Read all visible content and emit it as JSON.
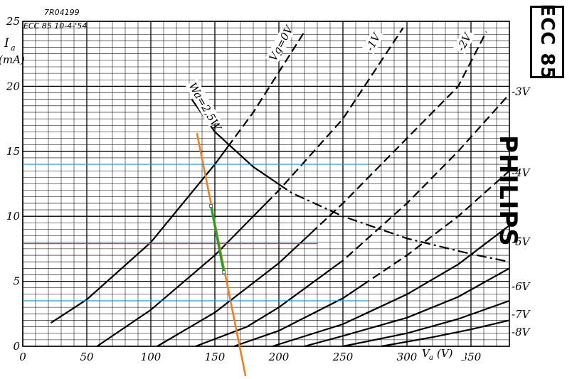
{
  "header": {
    "code": "7R04199",
    "tube_date": "ECC 85 10-4-'54"
  },
  "brand": {
    "tube": "ECC 85",
    "maker": "PHILIPS"
  },
  "axes": {
    "y_label_main": "I",
    "y_label_sub": "a",
    "y_unit": "(mA)",
    "x_label_main": "V",
    "x_label_sub": "a",
    "x_unit": "(V)"
  },
  "chart_data": {
    "type": "line",
    "title": "",
    "xlabel": "Va (V)",
    "ylabel": "Ia (mA)",
    "xlim": [
      0,
      380
    ],
    "ylim": [
      0,
      25
    ],
    "x_ticks": [
      "0",
      "50",
      "100",
      "150",
      "200",
      "250",
      "300",
      "350"
    ],
    "y_ticks": [
      "0",
      "5",
      "10",
      "15",
      "20",
      "25"
    ],
    "grid": true,
    "series": [
      {
        "name": "Vg=0V",
        "points": [
          [
            22,
            1.8
          ],
          [
            50,
            3.6
          ],
          [
            100,
            8.0
          ],
          [
            150,
            14.0
          ],
          [
            180,
            18.0
          ],
          [
            220,
            24.2
          ]
        ],
        "dash_from": 160
      },
      {
        "name": "-1V",
        "points": [
          [
            58,
            0
          ],
          [
            100,
            2.8
          ],
          [
            150,
            7.0
          ],
          [
            200,
            12.0
          ],
          [
            250,
            17.5
          ],
          [
            297,
            24.5
          ]
        ],
        "dash_from": 190
      },
      {
        "name": "-2V",
        "points": [
          [
            105,
            0
          ],
          [
            150,
            2.6
          ],
          [
            200,
            6.4
          ],
          [
            250,
            11.0
          ],
          [
            300,
            16.0
          ],
          [
            340,
            20.0
          ],
          [
            362,
            24.2
          ]
        ],
        "dash_from": 225
      },
      {
        "name": "-3V",
        "points": [
          [
            135,
            0
          ],
          [
            175,
            1.5
          ],
          [
            200,
            3.0
          ],
          [
            250,
            6.6
          ],
          [
            300,
            11.0
          ],
          [
            340,
            15.0
          ],
          [
            380,
            19.4
          ]
        ],
        "dash_from": 245
      },
      {
        "name": "-4V",
        "points": [
          [
            165,
            0
          ],
          [
            200,
            1.2
          ],
          [
            250,
            3.7
          ],
          [
            300,
            7.0
          ],
          [
            340,
            10.0
          ],
          [
            380,
            13.5
          ]
        ],
        "dash_from": 265
      },
      {
        "name": "-5V",
        "points": [
          [
            195,
            0
          ],
          [
            250,
            1.7
          ],
          [
            300,
            4.0
          ],
          [
            340,
            6.3
          ],
          [
            380,
            9.3
          ]
        ]
      },
      {
        "name": "-6V",
        "points": [
          [
            220,
            0
          ],
          [
            250,
            0.8
          ],
          [
            300,
            2.2
          ],
          [
            340,
            3.8
          ],
          [
            380,
            6.0
          ]
        ]
      },
      {
        "name": "-7V",
        "points": [
          [
            250,
            0
          ],
          [
            300,
            1.0
          ],
          [
            340,
            2.1
          ],
          [
            380,
            3.5
          ]
        ]
      },
      {
        "name": "-8V",
        "points": [
          [
            280,
            0
          ],
          [
            320,
            0.7
          ],
          [
            350,
            1.3
          ],
          [
            380,
            2.0
          ]
        ]
      }
    ],
    "power_limit": {
      "name": "Wa=2.5W",
      "points": [
        [
          132,
          19.0
        ],
        [
          150,
          16.5
        ],
        [
          180,
          13.8
        ],
        [
          210,
          11.8
        ],
        [
          250,
          10.0
        ],
        [
          300,
          8.3
        ],
        [
          350,
          7.1
        ],
        [
          380,
          6.5
        ]
      ],
      "solid_until": 200
    },
    "curve_labels": [
      "Vg=0V",
      "-1V",
      "-2V",
      "-3V",
      "-4V",
      "-5V",
      "-6V",
      "-7V",
      "-8V",
      "Wa=2,5W"
    ],
    "overlay_lines": [
      {
        "kind": "load-line",
        "color": "#f08020",
        "points": [
          [
            136,
            16.4
          ],
          [
            174,
            -2.3
          ]
        ]
      },
      {
        "kind": "operating-segment",
        "color": "#2aa02a",
        "points": [
          [
            147,
            10.8
          ],
          [
            157,
            5.7
          ]
        ]
      },
      {
        "kind": "horizontal",
        "color": "#2a8fd0",
        "y": 14.0,
        "x_range": [
          0,
          270
        ]
      },
      {
        "kind": "horizontal",
        "color": "#d04040",
        "y": 7.9,
        "x_range": [
          0,
          230
        ]
      },
      {
        "kind": "horizontal",
        "color": "#2a8fd0",
        "y": 3.5,
        "x_range": [
          0,
          270
        ]
      }
    ]
  }
}
